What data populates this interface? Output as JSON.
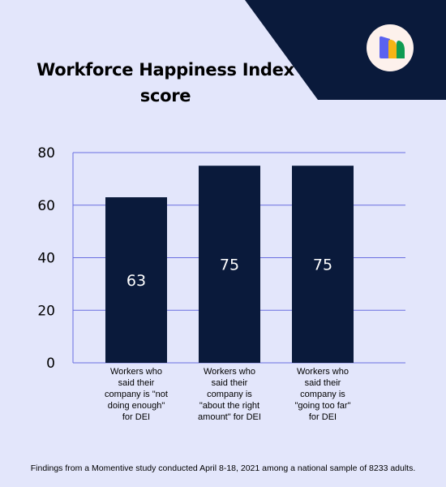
{
  "title_lines": [
    "Workforce Happiness Index",
    "score"
  ],
  "footnote": "Findings from a Momentive study conducted April 8-18, 2021 among a national sample of 8233 adults.",
  "colors": {
    "background": "#e3e6fb",
    "corner": "#0a1a3b",
    "bar": "#0a1a3b",
    "grid": "#6a6fe0",
    "logo_blue": "#5a62f0",
    "logo_yellow": "#f5b416",
    "logo_green": "#0e9c52",
    "logo_badge": "#fdf1ec"
  },
  "logo": {
    "icon": "momentive-logo-icon"
  },
  "chart_data": {
    "type": "bar",
    "title": "Workforce Happiness Index score",
    "categories": [
      [
        "Workers who",
        "said their",
        "company is \"not",
        "doing enough\"",
        "for DEI"
      ],
      [
        "Workers who",
        "said their",
        "company is",
        "\"about the right",
        "amount\" for DEI"
      ],
      [
        "Workers who",
        "said their",
        "company is",
        "\"going too far\"",
        "for DEI"
      ]
    ],
    "values": [
      63,
      75,
      75
    ],
    "data_labels": [
      "63",
      "75",
      "75"
    ],
    "yticks": [
      0,
      20,
      40,
      60,
      80
    ],
    "ylim": [
      0,
      80
    ],
    "grid": true,
    "legend": "none"
  }
}
